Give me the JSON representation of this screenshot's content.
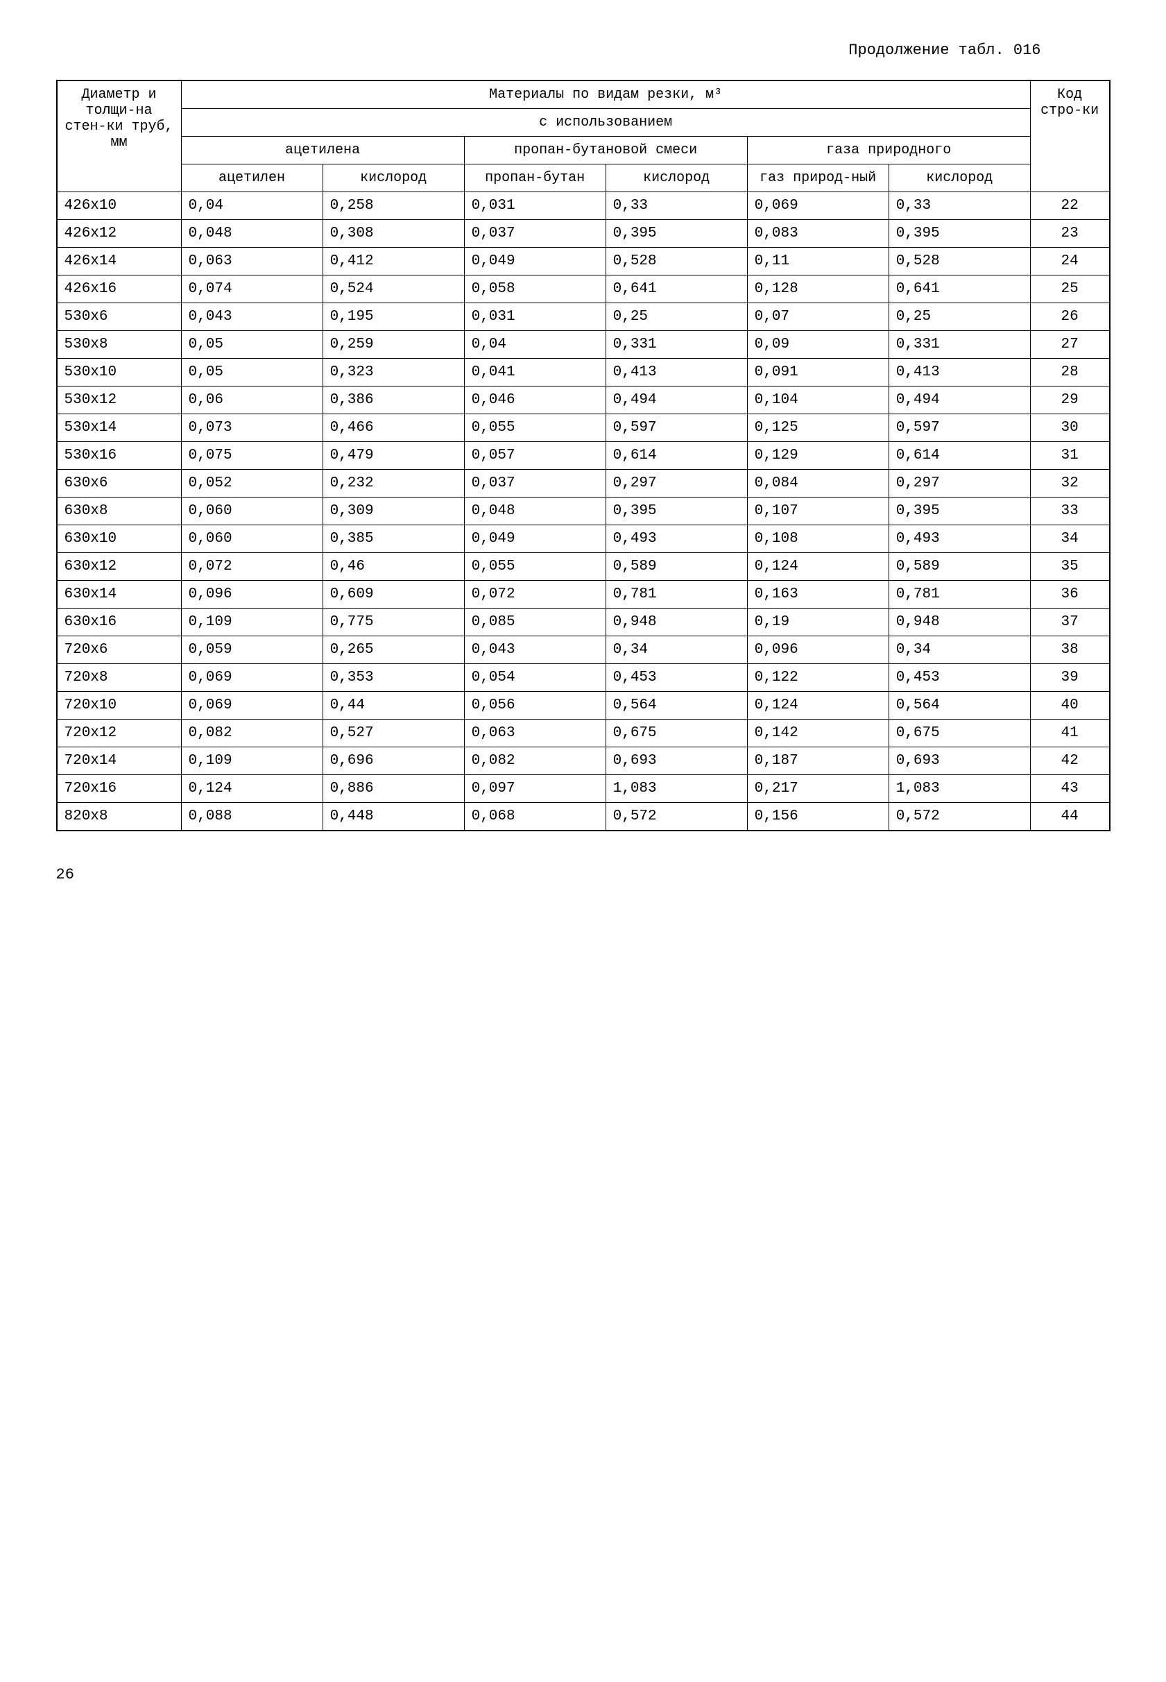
{
  "continuation_label": "Продолжение табл. 016",
  "page_number": "26",
  "headers": {
    "diameter": "Диаметр и толщи-на стен-ки труб, мм",
    "materials_title": "Материалы по видам резки, м³",
    "using": "с использованием",
    "acetylene": "ацетилена",
    "propane_butane": "пропан-бутановой смеси",
    "natural_gas": "газа природного",
    "col_acetylene": "ацетилен",
    "col_oxygen1": "кислород",
    "col_propane": "пропан-бутан",
    "col_oxygen2": "кислород",
    "col_natgas": "газ природ-ный",
    "col_oxygen3": "кислород",
    "code": "Код стро-ки"
  },
  "rows": [
    {
      "d": "426х10",
      "v": [
        "0,04",
        "0,258",
        "0,031",
        "0,33",
        "0,069",
        "0,33"
      ],
      "c": "22"
    },
    {
      "d": "426х12",
      "v": [
        "0,048",
        "0,308",
        "0,037",
        "0,395",
        "0,083",
        "0,395"
      ],
      "c": "23"
    },
    {
      "d": "426х14",
      "v": [
        "0,063",
        "0,412",
        "0,049",
        "0,528",
        "0,11",
        "0,528"
      ],
      "c": "24"
    },
    {
      "d": "426х16",
      "v": [
        "0,074",
        "0,524",
        "0,058",
        "0,641",
        "0,128",
        "0,641"
      ],
      "c": "25"
    },
    {
      "d": "530х6",
      "v": [
        "0,043",
        "0,195",
        "0,031",
        "0,25",
        "0,07",
        "0,25"
      ],
      "c": "26"
    },
    {
      "d": "530х8",
      "v": [
        "0,05",
        "0,259",
        "0,04",
        "0,331",
        "0,09",
        "0,331"
      ],
      "c": "27"
    },
    {
      "d": "530х10",
      "v": [
        "0,05",
        "0,323",
        "0,041",
        "0,413",
        "0,091",
        "0,413"
      ],
      "c": "28"
    },
    {
      "d": "530х12",
      "v": [
        "0,06",
        "0,386",
        "0,046",
        "0,494",
        "0,104",
        "0,494"
      ],
      "c": "29"
    },
    {
      "d": "530х14",
      "v": [
        "0,073",
        "0,466",
        "0,055",
        "0,597",
        "0,125",
        "0,597"
      ],
      "c": "30"
    },
    {
      "d": "530х16",
      "v": [
        "0,075",
        "0,479",
        "0,057",
        "0,614",
        "0,129",
        "0,614"
      ],
      "c": "31"
    },
    {
      "d": "630х6",
      "v": [
        "0,052",
        "0,232",
        "0,037",
        "0,297",
        "0,084",
        "0,297"
      ],
      "c": "32"
    },
    {
      "d": "630х8",
      "v": [
        "0,060",
        "0,309",
        "0,048",
        "0,395",
        "0,107",
        "0,395"
      ],
      "c": "33"
    },
    {
      "d": "630х10",
      "v": [
        "0,060",
        "0,385",
        "0,049",
        "0,493",
        "0,108",
        "0,493"
      ],
      "c": "34"
    },
    {
      "d": "630х12",
      "v": [
        "0,072",
        "0,46",
        "0,055",
        "0,589",
        "0,124",
        "0,589"
      ],
      "c": "35"
    },
    {
      "d": "630х14",
      "v": [
        "0,096",
        "0,609",
        "0,072",
        "0,781",
        "0,163",
        "0,781"
      ],
      "c": "36"
    },
    {
      "d": "630х16",
      "v": [
        "0,109",
        "0,775",
        "0,085",
        "0,948",
        "0,19",
        "0,948"
      ],
      "c": "37"
    },
    {
      "d": "720х6",
      "v": [
        "0,059",
        "0,265",
        "0,043",
        "0,34",
        "0,096",
        "0,34"
      ],
      "c": "38"
    },
    {
      "d": "720х8",
      "v": [
        "0,069",
        "0,353",
        "0,054",
        "0,453",
        "0,122",
        "0,453"
      ],
      "c": "39"
    },
    {
      "d": "720х10",
      "v": [
        "0,069",
        "0,44",
        "0,056",
        "0,564",
        "0,124",
        "0,564"
      ],
      "c": "40"
    },
    {
      "d": "720х12",
      "v": [
        "0,082",
        "0,527",
        "0,063",
        "0,675",
        "0,142",
        "0,675"
      ],
      "c": "41"
    },
    {
      "d": "720х14",
      "v": [
        "0,109",
        "0,696",
        "0,082",
        "0,693",
        "0,187",
        "0,693"
      ],
      "c": "42"
    },
    {
      "d": "720х16",
      "v": [
        "0,124",
        "0,886",
        "0,097",
        "1,083",
        "0,217",
        "1,083"
      ],
      "c": "43"
    },
    {
      "d": "820х8",
      "v": [
        "0,088",
        "0,448",
        "0,068",
        "0,572",
        "0,156",
        "0,572"
      ],
      "c": "44"
    }
  ]
}
